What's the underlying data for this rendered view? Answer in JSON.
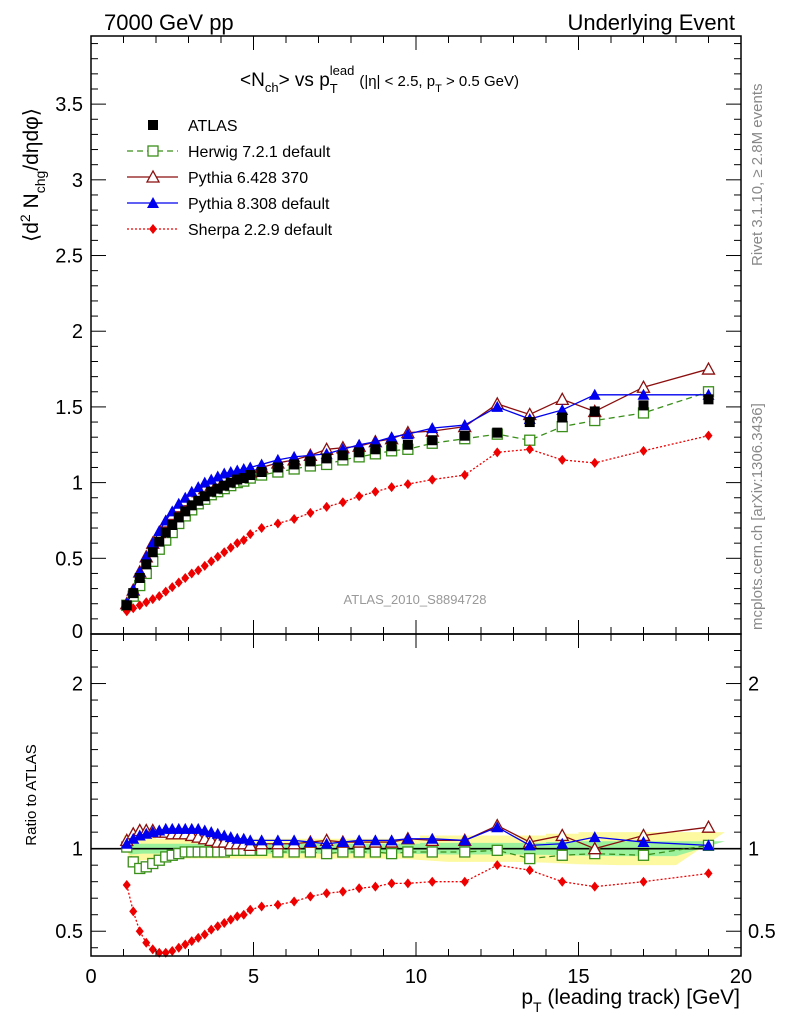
{
  "header": {
    "left": "7000 GeV pp",
    "right": "Underlying Event"
  },
  "side_texts": {
    "rivet": "Rivet 3.1.10, ≥ 2.8M events",
    "mcplots": "mcplots.cern.ch [arXiv:1306.3436]"
  },
  "legend_entries": [
    {
      "label": "ATLAS",
      "color": "#000000",
      "marker": "filled-square",
      "line": "none"
    },
    {
      "label": "Herwig 7.2.1 default",
      "color": "#3a8f1a",
      "marker": "open-square",
      "line": "dashed"
    },
    {
      "label": "Pythia 6.428 370",
      "color": "#8b0f0f",
      "marker": "open-triangle",
      "line": "solid"
    },
    {
      "label": "Pythia 8.308 default",
      "color": "#0000ee",
      "marker": "filled-triangle",
      "line": "solid"
    },
    {
      "label": "Sherpa 2.2.9 default",
      "color": "#ee0000",
      "marker": "filled-diamond",
      "line": "dotted"
    }
  ],
  "chart_data": [
    {
      "type": "scatter",
      "panel": "main",
      "title_parts": {
        "n": "<N",
        "ch": "ch",
        "close": "> vs p",
        "T": "T",
        "lead": "lead",
        "cut1": "(|η| < 2.5, p",
        "cutT": "T",
        "cut2": " > 0.5 GeV)"
      },
      "ylabel_parts": {
        "a": "⟨d",
        "sup2": "2",
        "b": " N",
        "chg": "chg",
        "c": "/dηdφ⟩"
      },
      "watermark": "ATLAS_2010_S8894728",
      "xlim": [
        0,
        20
      ],
      "ylim": [
        0,
        3.95
      ],
      "yticks": [
        "0.5",
        "1",
        "1.5",
        "2",
        "2.5",
        "3",
        "3.5"
      ],
      "ytick_values": [
        0.5,
        1,
        1.5,
        2,
        2.5,
        3,
        3.5
      ],
      "y_bottom_label": "0",
      "x": [
        1.1,
        1.3,
        1.5,
        1.7,
        1.9,
        2.1,
        2.3,
        2.5,
        2.7,
        2.9,
        3.1,
        3.3,
        3.5,
        3.7,
        3.9,
        4.1,
        4.3,
        4.5,
        4.7,
        4.9,
        5.25,
        5.75,
        6.25,
        6.75,
        7.25,
        7.75,
        8.25,
        8.75,
        9.25,
        9.75,
        10.5,
        11.5,
        12.5,
        13.5,
        14.5,
        15.5,
        17.0,
        19.0
      ],
      "series": [
        {
          "name": "ATLAS",
          "values": [
            0.19,
            0.27,
            0.37,
            0.46,
            0.54,
            0.61,
            0.67,
            0.72,
            0.77,
            0.81,
            0.85,
            0.88,
            0.91,
            0.94,
            0.96,
            0.98,
            1.0,
            1.02,
            1.03,
            1.05,
            1.07,
            1.1,
            1.12,
            1.14,
            1.16,
            1.18,
            1.2,
            1.22,
            1.24,
            1.25,
            1.28,
            1.31,
            1.33,
            1.4,
            1.43,
            1.47,
            1.51,
            1.55
          ]
        },
        {
          "name": "Herwig 7.2.1 default",
          "values": [
            0.19,
            0.25,
            0.32,
            0.4,
            0.48,
            0.56,
            0.62,
            0.67,
            0.73,
            0.78,
            0.82,
            0.86,
            0.89,
            0.92,
            0.94,
            0.96,
            0.98,
            1.0,
            1.01,
            1.03,
            1.05,
            1.07,
            1.09,
            1.11,
            1.12,
            1.15,
            1.17,
            1.19,
            1.21,
            1.22,
            1.26,
            1.29,
            1.32,
            1.28,
            1.37,
            1.41,
            1.46,
            1.6
          ]
        },
        {
          "name": "Pythia 6.428 370",
          "values": [
            0.2,
            0.29,
            0.41,
            0.51,
            0.6,
            0.67,
            0.74,
            0.79,
            0.84,
            0.88,
            0.91,
            0.94,
            0.96,
            0.98,
            1.0,
            1.02,
            1.03,
            1.05,
            1.06,
            1.07,
            1.1,
            1.13,
            1.15,
            1.18,
            1.22,
            1.23,
            1.24,
            1.27,
            1.29,
            1.33,
            1.34,
            1.37,
            1.52,
            1.45,
            1.55,
            1.47,
            1.63,
            1.75
          ]
        },
        {
          "name": "Pythia 8.308 default",
          "values": [
            0.2,
            0.29,
            0.41,
            0.51,
            0.6,
            0.68,
            0.75,
            0.81,
            0.86,
            0.9,
            0.94,
            0.97,
            1.0,
            1.02,
            1.04,
            1.06,
            1.07,
            1.08,
            1.09,
            1.1,
            1.12,
            1.15,
            1.17,
            1.18,
            1.19,
            1.22,
            1.25,
            1.27,
            1.3,
            1.32,
            1.36,
            1.38,
            1.5,
            1.42,
            1.48,
            1.58,
            1.58,
            1.58
          ]
        },
        {
          "name": "Sherpa 2.2.9 default",
          "values": [
            0.15,
            0.17,
            0.19,
            0.21,
            0.23,
            0.25,
            0.28,
            0.31,
            0.34,
            0.37,
            0.4,
            0.42,
            0.45,
            0.48,
            0.51,
            0.54,
            0.57,
            0.6,
            0.62,
            0.66,
            0.7,
            0.73,
            0.76,
            0.8,
            0.84,
            0.87,
            0.91,
            0.94,
            0.97,
            0.99,
            1.02,
            1.05,
            1.2,
            1.22,
            1.15,
            1.13,
            1.21,
            1.31
          ]
        }
      ]
    },
    {
      "type": "scatter",
      "panel": "ratio",
      "ylabel": "Ratio to ATLAS",
      "xlabel_parts": {
        "p": "p",
        "T": "T",
        "rest": " (leading track) [GeV]"
      },
      "xlim": [
        0,
        20
      ],
      "ylim": [
        0.35,
        2.3
      ],
      "xticks": [
        "0",
        "5",
        "10",
        "15",
        "20"
      ],
      "xtick_values": [
        0,
        5,
        10,
        15,
        20
      ],
      "yticks_left": [
        "0.5",
        "1",
        "2"
      ],
      "yticks_right": [
        "0.5",
        "1",
        "2"
      ],
      "ytick_values": [
        0.5,
        1,
        2
      ],
      "bands": {
        "yellow_halfwidth": [
          0.08,
          0.08,
          0.07,
          0.07,
          0.07,
          0.06,
          0.06,
          0.06,
          0.06,
          0.06,
          0.06,
          0.06,
          0.06,
          0.06,
          0.06,
          0.06,
          0.06,
          0.06,
          0.06,
          0.06,
          0.06,
          0.06,
          0.06,
          0.06,
          0.06,
          0.06,
          0.06,
          0.06,
          0.06,
          0.06,
          0.08,
          0.08,
          0.08,
          0.08,
          0.09,
          0.1,
          0.1,
          0.1
        ],
        "green_halfwidth": [
          0.035,
          0.035,
          0.03,
          0.03,
          0.03,
          0.03,
          0.03,
          0.03,
          0.03,
          0.03,
          0.03,
          0.03,
          0.03,
          0.03,
          0.03,
          0.03,
          0.03,
          0.03,
          0.03,
          0.03,
          0.03,
          0.03,
          0.03,
          0.03,
          0.03,
          0.03,
          0.03,
          0.03,
          0.03,
          0.03,
          0.035,
          0.035,
          0.035,
          0.035,
          0.04,
          0.045,
          0.045,
          0.045
        ]
      },
      "series": [
        {
          "name": "Herwig 7.2.1 default",
          "values": [
            1.01,
            0.92,
            0.88,
            0.89,
            0.91,
            0.93,
            0.95,
            0.96,
            0.97,
            0.98,
            0.98,
            0.98,
            0.98,
            0.98,
            0.98,
            0.98,
            0.99,
            0.99,
            0.99,
            0.99,
            0.99,
            0.98,
            0.98,
            0.98,
            0.97,
            0.98,
            0.98,
            0.98,
            0.97,
            0.98,
            0.98,
            0.98,
            0.99,
            0.94,
            0.96,
            0.97,
            0.96,
            1.02
          ]
        },
        {
          "name": "Pythia 6.428 370",
          "values": [
            1.05,
            1.09,
            1.11,
            1.11,
            1.11,
            1.1,
            1.1,
            1.09,
            1.09,
            1.09,
            1.08,
            1.07,
            1.06,
            1.05,
            1.04,
            1.04,
            1.03,
            1.03,
            1.03,
            1.02,
            1.03,
            1.03,
            1.03,
            1.04,
            1.05,
            1.04,
            1.04,
            1.04,
            1.04,
            1.06,
            1.05,
            1.05,
            1.14,
            1.04,
            1.08,
            1.0,
            1.08,
            1.13
          ]
        },
        {
          "name": "Pythia 8.308 default",
          "values": [
            1.03,
            1.06,
            1.08,
            1.09,
            1.1,
            1.11,
            1.12,
            1.12,
            1.12,
            1.12,
            1.12,
            1.12,
            1.11,
            1.1,
            1.09,
            1.08,
            1.07,
            1.06,
            1.06,
            1.05,
            1.05,
            1.05,
            1.05,
            1.04,
            1.03,
            1.04,
            1.05,
            1.05,
            1.05,
            1.06,
            1.06,
            1.05,
            1.13,
            1.02,
            1.03,
            1.07,
            1.04,
            1.02
          ]
        },
        {
          "name": "Sherpa 2.2.9 default",
          "values": [
            0.78,
            0.62,
            0.5,
            0.43,
            0.39,
            0.37,
            0.37,
            0.38,
            0.4,
            0.42,
            0.44,
            0.46,
            0.48,
            0.51,
            0.53,
            0.55,
            0.57,
            0.59,
            0.6,
            0.63,
            0.65,
            0.66,
            0.68,
            0.71,
            0.73,
            0.74,
            0.76,
            0.77,
            0.79,
            0.79,
            0.8,
            0.8,
            0.9,
            0.87,
            0.8,
            0.77,
            0.8,
            0.85
          ]
        }
      ]
    }
  ]
}
